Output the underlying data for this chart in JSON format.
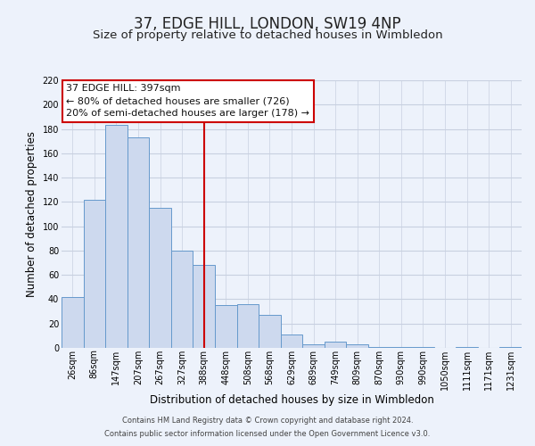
{
  "title": "37, EDGE HILL, LONDON, SW19 4NP",
  "subtitle": "Size of property relative to detached houses in Wimbledon",
  "xlabel": "Distribution of detached houses by size in Wimbledon",
  "ylabel": "Number of detached properties",
  "categories": [
    "26sqm",
    "86sqm",
    "147sqm",
    "207sqm",
    "267sqm",
    "327sqm",
    "388sqm",
    "448sqm",
    "508sqm",
    "568sqm",
    "629sqm",
    "689sqm",
    "749sqm",
    "809sqm",
    "870sqm",
    "930sqm",
    "990sqm",
    "1050sqm",
    "1111sqm",
    "1171sqm",
    "1231sqm"
  ],
  "values": [
    42,
    122,
    183,
    173,
    115,
    80,
    68,
    35,
    36,
    27,
    11,
    3,
    5,
    3,
    1,
    1,
    1,
    0,
    1,
    0,
    1
  ],
  "bar_color": "#cdd9ee",
  "bar_edge_color": "#6699cc",
  "vline_x_index": 6,
  "vline_color": "#cc0000",
  "annotation_text_line1": "37 EDGE HILL: 397sqm",
  "annotation_text_line2": "← 80% of detached houses are smaller (726)",
  "annotation_text_line3": "20% of semi-detached houses are larger (178) →",
  "annotation_box_facecolor": "#ffffff",
  "annotation_box_edgecolor": "#cc0000",
  "ylim": [
    0,
    220
  ],
  "yticks": [
    0,
    20,
    40,
    60,
    80,
    100,
    120,
    140,
    160,
    180,
    200,
    220
  ],
  "footer1": "Contains HM Land Registry data © Crown copyright and database right 2024.",
  "footer2": "Contains public sector information licensed under the Open Government Licence v3.0.",
  "bg_color": "#edf2fb",
  "grid_color": "#c8d0e0",
  "title_fontsize": 12,
  "subtitle_fontsize": 9.5,
  "tick_fontsize": 7,
  "axis_label_fontsize": 8.5,
  "footer_fontsize": 6,
  "annotation_fontsize": 8
}
